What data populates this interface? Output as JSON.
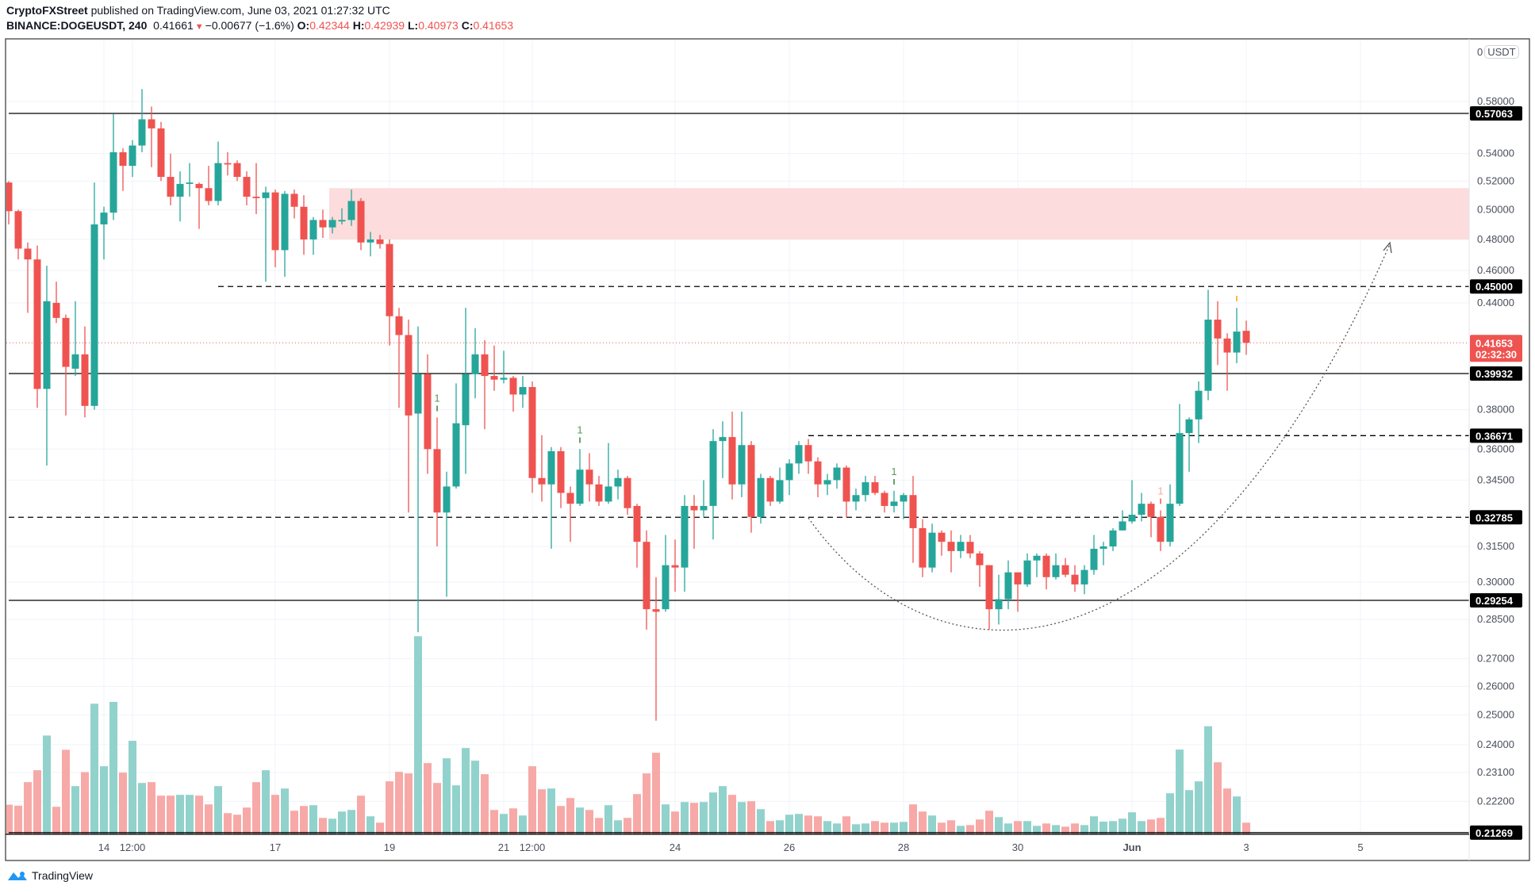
{
  "header": {
    "author": "CryptoFXStreet",
    "published": "published on TradingView.com, June 03, 2021 01:27:32 UTC",
    "symbol": "BINANCE:DOGEUSDT, 240",
    "last": "0.41661",
    "change": "−0.00677 (−1.6%)",
    "o_label": "O:",
    "o": "0.42344",
    "h_label": "H:",
    "h": "0.42939",
    "l_label": "L:",
    "l": "0.40973",
    "c_label": "C:",
    "c": "0.41653"
  },
  "currency": {
    "zero": "0",
    "unit": "USDT"
  },
  "footer": {
    "brand": "TradingView"
  },
  "colors": {
    "up": "#26a69a",
    "down": "#ef5350",
    "up_vol": "#92d2cc",
    "down_vol": "#f7a9a7",
    "zone": "#fcdcdc",
    "marker_green": "#2e7d32",
    "marker_red": "#ef5350",
    "marker_orange": "#ff9800"
  },
  "chart_data": {
    "type": "candlestick",
    "timeframe": "240",
    "scale": "log",
    "ylim": [
      0.21269,
      0.58
    ],
    "price_ticks": [
      "0.58000",
      "0.54000",
      "0.52000",
      "0.50000",
      "0.48000",
      "0.46000",
      "0.44000",
      "0.38000",
      "0.36000",
      "0.34500",
      "0.31500",
      "0.30000",
      "0.28500",
      "0.27000",
      "0.26000",
      "0.25000",
      "0.24000",
      "0.23100",
      "0.22200"
    ],
    "time_labels": [
      {
        "bar": 10,
        "text": "14"
      },
      {
        "bar": 13,
        "text": "12:00"
      },
      {
        "bar": 28,
        "text": "17"
      },
      {
        "bar": 40,
        "text": "19"
      },
      {
        "bar": 52,
        "text": "21"
      },
      {
        "bar": 55,
        "text": "12:00"
      },
      {
        "bar": 70,
        "text": "24"
      },
      {
        "bar": 82,
        "text": "26"
      },
      {
        "bar": 94,
        "text": "28"
      },
      {
        "bar": 106,
        "text": "30"
      },
      {
        "bar": 118,
        "text": "Jun",
        "bold": true
      },
      {
        "bar": 130,
        "text": "3"
      },
      {
        "bar": 142,
        "text": "5"
      }
    ],
    "levels": [
      {
        "price": 0.57063,
        "label": "0.57063",
        "style": "solid",
        "from_bar": 0
      },
      {
        "price": 0.45,
        "label": "0.45000",
        "style": "dashed",
        "from_bar": 22
      },
      {
        "price": 0.39932,
        "label": "0.39932",
        "style": "solid",
        "from_bar": 0
      },
      {
        "price": 0.36671,
        "label": "0.36671",
        "style": "dashed",
        "from_bar": 84
      },
      {
        "price": 0.32785,
        "label": "0.32785",
        "style": "dashed",
        "from_bar": 0
      },
      {
        "price": 0.29254,
        "label": "0.29254",
        "style": "solid",
        "from_bar": 0
      },
      {
        "price": 0.21269,
        "label": "0.21269",
        "style": "solid",
        "from_bar": 0
      }
    ],
    "current": {
      "price": 0.41653,
      "label": "0.41653",
      "countdown": "02:32:30"
    },
    "zone": {
      "low": 0.48,
      "high": 0.515,
      "from_bar": 34
    },
    "markers": [
      {
        "bar": 45,
        "text": "1",
        "color": "green"
      },
      {
        "bar": 60,
        "text": "1",
        "color": "green"
      },
      {
        "bar": 93,
        "text": "1",
        "color": "green"
      },
      {
        "bar": 121,
        "text": "1",
        "color": "red"
      },
      {
        "bar": 129,
        "text": "",
        "color": "orange"
      }
    ],
    "candles_ohlc": [
      [
        0.519,
        0.52,
        0.49,
        0.499
      ],
      [
        0.499,
        0.5,
        0.467,
        0.474
      ],
      [
        0.474,
        0.478,
        0.434,
        0.467
      ],
      [
        0.467,
        0.476,
        0.381,
        0.391
      ],
      [
        0.391,
        0.463,
        0.352,
        0.441
      ],
      [
        0.44,
        0.453,
        0.428,
        0.431
      ],
      [
        0.431,
        0.433,
        0.377,
        0.403
      ],
      [
        0.402,
        0.441,
        0.398,
        0.41
      ],
      [
        0.41,
        0.426,
        0.376,
        0.382
      ],
      [
        0.382,
        0.519,
        0.38,
        0.49
      ],
      [
        0.49,
        0.502,
        0.467,
        0.498
      ],
      [
        0.498,
        0.57,
        0.493,
        0.541
      ],
      [
        0.541,
        0.544,
        0.513,
        0.531
      ],
      [
        0.531,
        0.55,
        0.523,
        0.546
      ],
      [
        0.546,
        0.59,
        0.541,
        0.566
      ],
      [
        0.566,
        0.576,
        0.53,
        0.559
      ],
      [
        0.559,
        0.564,
        0.52,
        0.523
      ],
      [
        0.523,
        0.54,
        0.503,
        0.509
      ],
      [
        0.509,
        0.527,
        0.492,
        0.518
      ],
      [
        0.518,
        0.533,
        0.509,
        0.519
      ],
      [
        0.518,
        0.519,
        0.487,
        0.515
      ],
      [
        0.515,
        0.531,
        0.503,
        0.506
      ],
      [
        0.506,
        0.549,
        0.503,
        0.533
      ],
      [
        0.533,
        0.541,
        0.524,
        0.532
      ],
      [
        0.533,
        0.535,
        0.52,
        0.523
      ],
      [
        0.523,
        0.527,
        0.503,
        0.509
      ],
      [
        0.509,
        0.533,
        0.497,
        0.508
      ],
      [
        0.508,
        0.516,
        0.453,
        0.512
      ],
      [
        0.512,
        0.514,
        0.462,
        0.473
      ],
      [
        0.473,
        0.513,
        0.456,
        0.511
      ],
      [
        0.511,
        0.514,
        0.494,
        0.502
      ],
      [
        0.502,
        0.51,
        0.47,
        0.48
      ],
      [
        0.48,
        0.495,
        0.47,
        0.493
      ],
      [
        0.493,
        0.5,
        0.481,
        0.488
      ],
      [
        0.488,
        0.495,
        0.484,
        0.493
      ],
      [
        0.492,
        0.501,
        0.49,
        0.493
      ],
      [
        0.493,
        0.514,
        0.489,
        0.506
      ],
      [
        0.506,
        0.508,
        0.473,
        0.478
      ],
      [
        0.478,
        0.485,
        0.469,
        0.48
      ],
      [
        0.48,
        0.483,
        0.474,
        0.477
      ],
      [
        0.477,
        0.48,
        0.415,
        0.432
      ],
      [
        0.432,
        0.437,
        0.381,
        0.421
      ],
      [
        0.421,
        0.43,
        0.33,
        0.377
      ],
      [
        0.378,
        0.426,
        0.28,
        0.399
      ],
      [
        0.399,
        0.41,
        0.348,
        0.36
      ],
      [
        0.36,
        0.376,
        0.315,
        0.33
      ],
      [
        0.33,
        0.349,
        0.294,
        0.342
      ],
      [
        0.342,
        0.394,
        0.341,
        0.373
      ],
      [
        0.372,
        0.437,
        0.348,
        0.399
      ],
      [
        0.399,
        0.425,
        0.386,
        0.41
      ],
      [
        0.41,
        0.418,
        0.37,
        0.398
      ],
      [
        0.398,
        0.415,
        0.39,
        0.396
      ],
      [
        0.396,
        0.412,
        0.394,
        0.397
      ],
      [
        0.397,
        0.398,
        0.379,
        0.388
      ],
      [
        0.388,
        0.398,
        0.381,
        0.392
      ],
      [
        0.392,
        0.395,
        0.339,
        0.346
      ],
      [
        0.346,
        0.367,
        0.335,
        0.343
      ],
      [
        0.343,
        0.361,
        0.314,
        0.359
      ],
      [
        0.359,
        0.361,
        0.332,
        0.339
      ],
      [
        0.339,
        0.342,
        0.317,
        0.334
      ],
      [
        0.334,
        0.36,
        0.333,
        0.35
      ],
      [
        0.35,
        0.358,
        0.335,
        0.343
      ],
      [
        0.343,
        0.347,
        0.333,
        0.335
      ],
      [
        0.335,
        0.363,
        0.334,
        0.342
      ],
      [
        0.342,
        0.35,
        0.336,
        0.346
      ],
      [
        0.346,
        0.347,
        0.329,
        0.332
      ],
      [
        0.333,
        0.334,
        0.306,
        0.317
      ],
      [
        0.317,
        0.322,
        0.281,
        0.289
      ],
      [
        0.289,
        0.302,
        0.248,
        0.288
      ],
      [
        0.289,
        0.32,
        0.288,
        0.307
      ],
      [
        0.307,
        0.318,
        0.296,
        0.306
      ],
      [
        0.306,
        0.338,
        0.296,
        0.333
      ],
      [
        0.333,
        0.338,
        0.314,
        0.331
      ],
      [
        0.331,
        0.345,
        0.328,
        0.333
      ],
      [
        0.333,
        0.37,
        0.318,
        0.364
      ],
      [
        0.364,
        0.374,
        0.346,
        0.366
      ],
      [
        0.366,
        0.379,
        0.336,
        0.343
      ],
      [
        0.343,
        0.379,
        0.337,
        0.362
      ],
      [
        0.362,
        0.364,
        0.321,
        0.328
      ],
      [
        0.328,
        0.348,
        0.325,
        0.346
      ],
      [
        0.346,
        0.347,
        0.333,
        0.335
      ],
      [
        0.335,
        0.351,
        0.334,
        0.345
      ],
      [
        0.345,
        0.355,
        0.338,
        0.353
      ],
      [
        0.353,
        0.364,
        0.348,
        0.362
      ],
      [
        0.362,
        0.365,
        0.348,
        0.354
      ],
      [
        0.354,
        0.356,
        0.337,
        0.343
      ],
      [
        0.343,
        0.348,
        0.338,
        0.345
      ],
      [
        0.345,
        0.353,
        0.341,
        0.351
      ],
      [
        0.351,
        0.352,
        0.328,
        0.335
      ],
      [
        0.335,
        0.341,
        0.331,
        0.338
      ],
      [
        0.338,
        0.347,
        0.335,
        0.344
      ],
      [
        0.344,
        0.347,
        0.338,
        0.339
      ],
      [
        0.339,
        0.34,
        0.33,
        0.333
      ],
      [
        0.333,
        0.34,
        0.33,
        0.335
      ],
      [
        0.335,
        0.339,
        0.327,
        0.338
      ],
      [
        0.338,
        0.347,
        0.308,
        0.323
      ],
      [
        0.323,
        0.327,
        0.302,
        0.306
      ],
      [
        0.306,
        0.325,
        0.304,
        0.321
      ],
      [
        0.321,
        0.322,
        0.311,
        0.317
      ],
      [
        0.317,
        0.322,
        0.304,
        0.313
      ],
      [
        0.313,
        0.32,
        0.31,
        0.317
      ],
      [
        0.317,
        0.32,
        0.31,
        0.312
      ],
      [
        0.312,
        0.313,
        0.298,
        0.307
      ],
      [
        0.307,
        0.307,
        0.281,
        0.289
      ],
      [
        0.289,
        0.303,
        0.283,
        0.293
      ],
      [
        0.293,
        0.309,
        0.289,
        0.304
      ],
      [
        0.304,
        0.304,
        0.288,
        0.299
      ],
      [
        0.299,
        0.312,
        0.298,
        0.309
      ],
      [
        0.309,
        0.312,
        0.302,
        0.311
      ],
      [
        0.311,
        0.312,
        0.297,
        0.302
      ],
      [
        0.302,
        0.312,
        0.301,
        0.307
      ],
      [
        0.307,
        0.31,
        0.302,
        0.303
      ],
      [
        0.303,
        0.307,
        0.296,
        0.299
      ],
      [
        0.299,
        0.307,
        0.295,
        0.305
      ],
      [
        0.305,
        0.32,
        0.303,
        0.314
      ],
      [
        0.314,
        0.317,
        0.307,
        0.315
      ],
      [
        0.315,
        0.323,
        0.313,
        0.322
      ],
      [
        0.322,
        0.331,
        0.322,
        0.326
      ],
      [
        0.326,
        0.345,
        0.325,
        0.329
      ],
      [
        0.329,
        0.339,
        0.326,
        0.334
      ],
      [
        0.334,
        0.335,
        0.319,
        0.328
      ],
      [
        0.328,
        0.331,
        0.313,
        0.317
      ],
      [
        0.317,
        0.343,
        0.315,
        0.334
      ],
      [
        0.334,
        0.383,
        0.333,
        0.368
      ],
      [
        0.368,
        0.376,
        0.349,
        0.375
      ],
      [
        0.375,
        0.395,
        0.363,
        0.39
      ],
      [
        0.39,
        0.448,
        0.385,
        0.43
      ],
      [
        0.43,
        0.441,
        0.404,
        0.419
      ],
      [
        0.419,
        0.422,
        0.39,
        0.411
      ],
      [
        0.411,
        0.437,
        0.405,
        0.423
      ],
      [
        0.42344,
        0.42939,
        0.40973,
        0.41653
      ]
    ],
    "volume_relative": [
      112,
      108,
      197,
      242,
      373,
      104,
      319,
      182,
      235,
      493,
      257,
      500,
      233,
      353,
      194,
      197,
      146,
      146,
      149,
      149,
      146,
      113,
      182,
      80,
      74,
      101,
      197,
      242,
      149,
      173,
      89,
      107,
      110,
      62,
      59,
      86,
      92,
      146,
      68,
      44,
      200,
      236,
      230,
      748,
      269,
      194,
      287,
      185,
      326,
      278,
      227,
      92,
      77,
      98,
      71,
      257,
      170,
      173,
      107,
      137,
      101,
      92,
      62,
      110,
      53,
      62,
      152,
      230,
      308,
      113,
      86,
      122,
      119,
      122,
      158,
      182,
      149,
      122,
      125,
      95,
      50,
      53,
      74,
      77,
      71,
      68,
      50,
      41,
      68,
      38,
      41,
      50,
      44,
      44,
      47,
      113,
      86,
      71,
      44,
      53,
      32,
      35,
      56,
      89,
      65,
      41,
      50,
      50,
      32,
      41,
      35,
      29,
      41,
      35,
      68,
      48,
      50,
      59,
      83,
      50,
      56,
      62,
      155,
      320,
      167,
      200,
      408,
      272,
      173,
      143,
      44
    ],
    "projection": "rounding-bottom curve with arrow toward 0.48 zone"
  }
}
